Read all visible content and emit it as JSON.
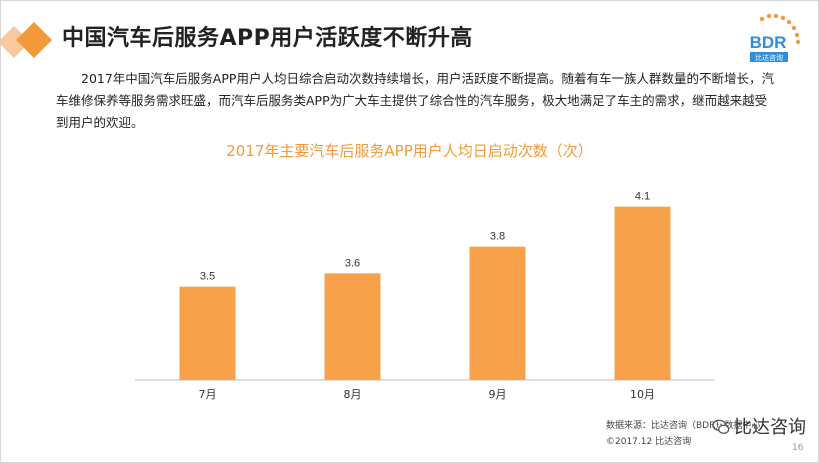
{
  "slide": {
    "title": "中国汽车后服务APP用户活跃度不断升高",
    "intro": "2017年中国汽车后服务APP用户人均日综合启动次数持续增长，用户活跃度不断提高。随着有车一族人群数量的不断增长，汽车维修保养等服务需求旺盛，而汽车后服务类APP为广大车主提供了综合性的汽车服务，极大地满足了车主的需求，继而越来越受到用户的欢迎。",
    "logo_text": "BDR",
    "logo_subtext": "比达咨询",
    "source_text": "数据来源：比达咨询（BDR）数据中心",
    "copyright": "©2017.12 比达咨询",
    "watermark": "比达咨询",
    "page_number": "16"
  },
  "colors": {
    "accent": "#f7a24a",
    "title_text": "#f39a3a",
    "logo_blue": "#2e8fd8"
  },
  "chart_data": {
    "type": "bar",
    "title": "2017年主要汽车后服务APP用户人均日启动次数（次）",
    "categories": [
      "7月",
      "8月",
      "9月",
      "10月"
    ],
    "values": [
      3.5,
      3.6,
      3.8,
      4.1
    ],
    "xlabel": "",
    "ylabel": "",
    "ylim": [
      2.8,
      4.3
    ],
    "grid": false,
    "legend": "none"
  }
}
